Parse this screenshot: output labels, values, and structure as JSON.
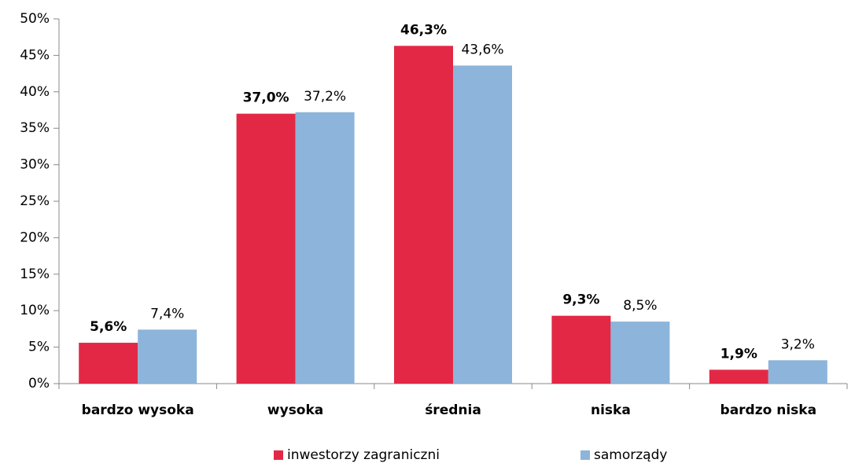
{
  "chart_data": {
    "type": "bar",
    "categories": [
      "bardzo wysoka",
      "wysoka",
      "średnia",
      "niska",
      "bardzo niska"
    ],
    "series": [
      {
        "name": "inwestorzy zagraniczni",
        "color": "#e32845",
        "values": [
          5.6,
          37.0,
          46.3,
          9.3,
          1.9
        ],
        "value_labels": [
          "5,6%",
          "37,0%",
          "46,3%",
          "9,3%",
          "1,9%"
        ]
      },
      {
        "name": "samorządy",
        "color": "#8db4da",
        "values": [
          7.4,
          37.2,
          43.6,
          8.5,
          3.2
        ],
        "value_labels": [
          "7,4%",
          "37,2%",
          "43,6%",
          "8,5%",
          "3,2%"
        ]
      }
    ],
    "ylim": [
      0,
      50
    ],
    "yticks": [
      {
        "value": 0,
        "label": "0%"
      },
      {
        "value": 5,
        "label": "5%"
      },
      {
        "value": 10,
        "label": "10%"
      },
      {
        "value": 15,
        "label": "15%"
      },
      {
        "value": 20,
        "label": "20%"
      },
      {
        "value": 25,
        "label": "25%"
      },
      {
        "value": 30,
        "label": "30%"
      },
      {
        "value": 35,
        "label": "35%"
      },
      {
        "value": 40,
        "label": "40%"
      },
      {
        "value": 45,
        "label": "45%"
      },
      {
        "value": 50,
        "label": "50%"
      }
    ],
    "grid": false,
    "legend": "bottom"
  }
}
